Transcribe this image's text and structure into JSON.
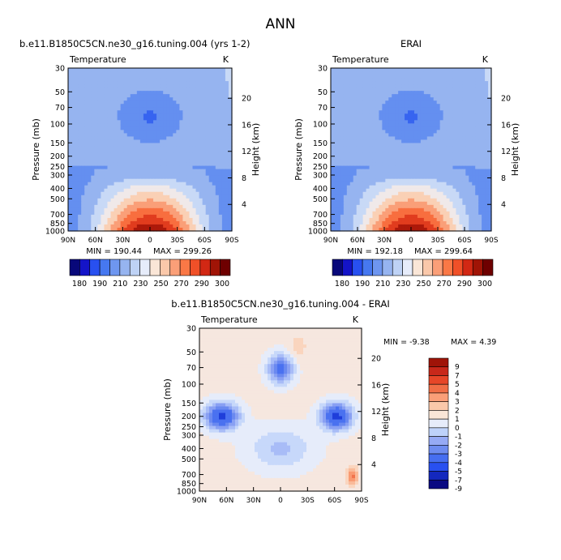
{
  "figure_title": "ANN",
  "colors": {
    "scale": [
      "#08087a",
      "#1414c8",
      "#2850f0",
      "#4678f0",
      "#6e96f0",
      "#96b4f0",
      "#bed2f5",
      "#e6ecfa",
      "#fae6d7",
      "#fac8aa",
      "#fa9f78",
      "#fa7846",
      "#f05028",
      "#d22814",
      "#a01406",
      "#6e0000"
    ],
    "diff_scale": [
      "#0a0a82",
      "#1428be",
      "#2850f0",
      "#466ef0",
      "#6e8cf0",
      "#96aaf5",
      "#bed2fa",
      "#e6ecfa",
      "#fae6d7",
      "#fac8aa",
      "#fa9f78",
      "#f06e46",
      "#e64628",
      "#c8281a",
      "#a01408"
    ]
  },
  "chart_data": [
    {
      "type": "heatmap",
      "id": "model",
      "title": "b.e11.B1850C5CN.ne30_g16.tuning.004 (yrs 1-2)",
      "subtitle_left": "Temperature",
      "subtitle_right": "K",
      "xlabel": "",
      "ylabel": "Pressure (mb)",
      "ylabel_right": "Height (km)",
      "x_ticks": [
        "90N",
        "60N",
        "30N",
        "0",
        "30S",
        "60S",
        "90S"
      ],
      "y_ticks": [
        "30",
        "50",
        "70",
        "100",
        "150",
        "200",
        "250",
        "300",
        "400",
        "500",
        "700",
        "850",
        "1000"
      ],
      "y_ticks_right": [
        "20",
        "16",
        "12",
        "8",
        "4"
      ],
      "min_label": "MIN = 190.44",
      "max_label": "MAX = 299.26",
      "min": 190.44,
      "max": 299.26,
      "colorbar_labels": [
        "180",
        "190",
        "210",
        "230",
        "250",
        "270",
        "290",
        "300"
      ]
    },
    {
      "type": "heatmap",
      "id": "obs",
      "title": "ERAI",
      "subtitle_left": "Temperature",
      "subtitle_right": "K",
      "xlabel": "",
      "ylabel": "Pressure (mb)",
      "ylabel_right": "Height (km)",
      "x_ticks": [
        "90N",
        "60N",
        "30N",
        "0",
        "30S",
        "60S",
        "90S"
      ],
      "y_ticks": [
        "30",
        "50",
        "70",
        "100",
        "150",
        "200",
        "250",
        "300",
        "400",
        "500",
        "700",
        "850",
        "1000"
      ],
      "y_ticks_right": [
        "20",
        "16",
        "12",
        "8",
        "4"
      ],
      "min_label": "MIN = 192.18",
      "max_label": "MAX = 299.64",
      "min": 192.18,
      "max": 299.64,
      "colorbar_labels": [
        "180",
        "190",
        "210",
        "230",
        "250",
        "270",
        "290",
        "300"
      ]
    },
    {
      "type": "heatmap",
      "id": "diff",
      "title": "b.e11.B1850C5CN.ne30_g16.tuning.004 - ERAI",
      "subtitle_left": "Temperature",
      "subtitle_right": "K",
      "xlabel": "",
      "ylabel": "Pressure (mb)",
      "ylabel_right": "Height (km)",
      "x_ticks": [
        "90N",
        "60N",
        "30N",
        "0",
        "30S",
        "60S",
        "90S"
      ],
      "y_ticks": [
        "30",
        "50",
        "70",
        "100",
        "150",
        "200",
        "250",
        "300",
        "400",
        "500",
        "700",
        "850",
        "1000"
      ],
      "y_ticks_right": [
        "20",
        "16",
        "12",
        "8",
        "4"
      ],
      "min_label": "MIN =  -9.38",
      "max_label": "MAX =   4.39",
      "min": -9.38,
      "max": 4.39,
      "colorbar_labels": [
        "9",
        "7",
        "5",
        "4",
        "3",
        "2",
        "1",
        "0",
        "-1",
        "-2",
        "-3",
        "-4",
        "-5",
        "-7",
        "-9"
      ]
    }
  ]
}
